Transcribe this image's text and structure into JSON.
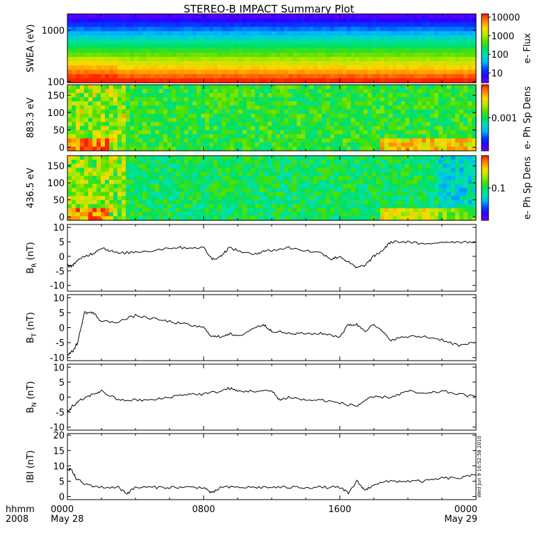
{
  "title": "STEREO-B IMPACT Summary Plot",
  "timestamp": "Wed Jun 9 16:52:58 2010",
  "x_axis": {
    "row1_label": "hhmm",
    "row2_label": "2008",
    "ticks": [
      {
        "hours": 0,
        "label": "0000",
        "sub": "May 28"
      },
      {
        "hours": 8,
        "label": "0800",
        "sub": ""
      },
      {
        "hours": 16,
        "label": "1600",
        "sub": ""
      },
      {
        "hours": 24,
        "label": "0000",
        "sub": "May 29"
      }
    ],
    "range_hours": [
      0,
      24
    ]
  },
  "colors": {
    "colormap": [
      "#7a00ff",
      "#2b00ff",
      "#0040ff",
      "#00b4ff",
      "#00e0b0",
      "#00e060",
      "#50e000",
      "#b4e800",
      "#ffd800",
      "#ff8800",
      "#ff2000"
    ],
    "line": "#000000"
  },
  "chart_data": [
    {
      "type": "heatmap",
      "panel": "swea",
      "ylabel": "SWEA (eV)",
      "yscale": "log",
      "ylim": [
        95,
        2100
      ],
      "yticks": [
        {
          "value": 100,
          "label": "100"
        },
        {
          "value": 1000,
          "label": "1000"
        }
      ],
      "colorbar_label": "e- Flux",
      "colorbar_scale": "log",
      "colorbar_range": [
        3,
        15000
      ],
      "colorbar_ticks": [
        {
          "value": 10,
          "label": "10"
        },
        {
          "value": 100,
          "label": "100"
        },
        {
          "value": 1000,
          "label": "1000"
        },
        {
          "value": 10000,
          "label": "10000"
        }
      ]
    },
    {
      "type": "heatmap",
      "panel": "pad883",
      "ylabel": "883.3 eV",
      "ylim": [
        -10,
        180
      ],
      "yticks": [
        {
          "value": 0,
          "label": "0"
        },
        {
          "value": 50,
          "label": "50"
        },
        {
          "value": 100,
          "label": "100"
        },
        {
          "value": 150,
          "label": "150"
        }
      ],
      "colorbar_label": "e- Ph Sp Dens",
      "colorbar_scale": "log",
      "colorbar_range": [
        0.0001,
        0.01
      ],
      "colorbar_ticks": [
        {
          "value": 0.001,
          "label": "0.001"
        }
      ]
    },
    {
      "type": "heatmap",
      "panel": "pad436",
      "ylabel": "436.5 eV",
      "ylim": [
        -10,
        180
      ],
      "yticks": [
        {
          "value": 0,
          "label": "0"
        },
        {
          "value": 50,
          "label": "50"
        },
        {
          "value": 100,
          "label": "100"
        },
        {
          "value": 150,
          "label": "150"
        }
      ],
      "colorbar_label": "e- Ph Sp Dens",
      "colorbar_scale": "log",
      "colorbar_range": [
        0.01,
        1
      ],
      "colorbar_ticks": [
        {
          "value": 0.1,
          "label": "0.1"
        }
      ]
    },
    {
      "type": "line",
      "panel": "br",
      "ylabel": "B",
      "ylabel_sub": "R",
      "ylabel_unit": " (nT)",
      "ylim": [
        -12,
        11
      ],
      "yticks": [
        {
          "value": -10,
          "label": "-10"
        },
        {
          "value": -5,
          "label": "-5"
        },
        {
          "value": 0,
          "label": "0"
        },
        {
          "value": 5,
          "label": "5"
        },
        {
          "value": 10,
          "label": "10"
        }
      ],
      "x": [
        0,
        0.2,
        0.5,
        1,
        1.5,
        2,
        2.5,
        3,
        4,
        5,
        6,
        7,
        8,
        8.5,
        9,
        9.5,
        10,
        11,
        11.5,
        12,
        13,
        14,
        15,
        15.5,
        16,
        16.5,
        17,
        17.5,
        18,
        18.5,
        19,
        20,
        21,
        22,
        23,
        24
      ],
      "y": [
        -3,
        -3.5,
        -2,
        0,
        1,
        3,
        2,
        1,
        1.5,
        2,
        3,
        3,
        3,
        -1,
        0,
        3,
        2,
        0.5,
        2,
        2,
        3,
        2,
        1,
        -1,
        0,
        -2,
        -4,
        -3,
        0,
        2,
        5,
        5,
        4,
        5,
        5,
        5
      ]
    },
    {
      "type": "line",
      "panel": "bt",
      "ylabel": "B",
      "ylabel_sub": "T",
      "ylabel_unit": " (nT)",
      "ylim": [
        -11,
        11
      ],
      "yticks": [
        {
          "value": -10,
          "label": "-10"
        },
        {
          "value": -5,
          "label": "-5"
        },
        {
          "value": 0,
          "label": "0"
        },
        {
          "value": 5,
          "label": "5"
        },
        {
          "value": 10,
          "label": "10"
        }
      ],
      "x": [
        0,
        0.3,
        0.6,
        1,
        1.5,
        2,
        3,
        4,
        5,
        6,
        7,
        8,
        8.5,
        9,
        9.5,
        10,
        11,
        11.5,
        12,
        13,
        14,
        15,
        16,
        16.5,
        17,
        17.5,
        18,
        19,
        20,
        21,
        22,
        23,
        24
      ],
      "y": [
        -9,
        -8,
        -5,
        5,
        5,
        2,
        2,
        4,
        3,
        2,
        1,
        0,
        -3,
        -3,
        -2,
        -3,
        0,
        1,
        -1,
        -2,
        -2,
        -2,
        -3,
        1,
        1,
        -1,
        1,
        -4,
        -3,
        -3,
        -4,
        -6,
        -5
      ]
    },
    {
      "type": "line",
      "panel": "bn",
      "ylabel": "B",
      "ylabel_sub": "N",
      "ylabel_unit": " (nT)",
      "ylim": [
        -11,
        11
      ],
      "yticks": [
        {
          "value": -10,
          "label": "-10"
        },
        {
          "value": -5,
          "label": "-5"
        },
        {
          "value": 0,
          "label": "0"
        },
        {
          "value": 5,
          "label": "5"
        },
        {
          "value": 10,
          "label": "10"
        }
      ],
      "x": [
        0,
        0.3,
        0.8,
        1.5,
        2,
        3,
        4,
        5,
        6,
        7,
        8,
        9,
        9.5,
        10,
        11,
        12,
        12.5,
        13,
        14,
        15,
        16,
        17,
        17.5,
        18,
        19,
        20,
        21,
        22,
        23,
        24
      ],
      "y": [
        -5,
        -3,
        -1,
        1,
        2,
        -1,
        -1,
        -1,
        0,
        1,
        1,
        2,
        3,
        2,
        2,
        2,
        -1,
        0,
        -1,
        -1,
        -2,
        -3,
        -1,
        0,
        0,
        2,
        1,
        2,
        1,
        0
      ]
    },
    {
      "type": "line",
      "panel": "bmag",
      "ylabel": "IBI (nT)",
      "ylim": [
        -1,
        20.5
      ],
      "yticks": [
        {
          "value": 0,
          "label": "0"
        },
        {
          "value": 5,
          "label": "5"
        },
        {
          "value": 10,
          "label": "10"
        },
        {
          "value": 15,
          "label": "15"
        },
        {
          "value": 20,
          "label": "20"
        }
      ],
      "x": [
        0,
        0.2,
        0.5,
        1,
        2,
        3,
        3.5,
        4,
        5,
        6,
        7,
        8,
        8.5,
        9,
        10,
        11,
        12,
        13,
        14,
        15,
        16,
        16.5,
        17,
        17.5,
        18,
        19,
        20,
        21,
        22,
        23,
        24
      ],
      "y": [
        9,
        9,
        6,
        4,
        3,
        3,
        1,
        3,
        3,
        3,
        3,
        3,
        1,
        3,
        3,
        3,
        3,
        3,
        3,
        3,
        3,
        1,
        5,
        2,
        4,
        5,
        5,
        5,
        6,
        6,
        7
      ]
    }
  ]
}
